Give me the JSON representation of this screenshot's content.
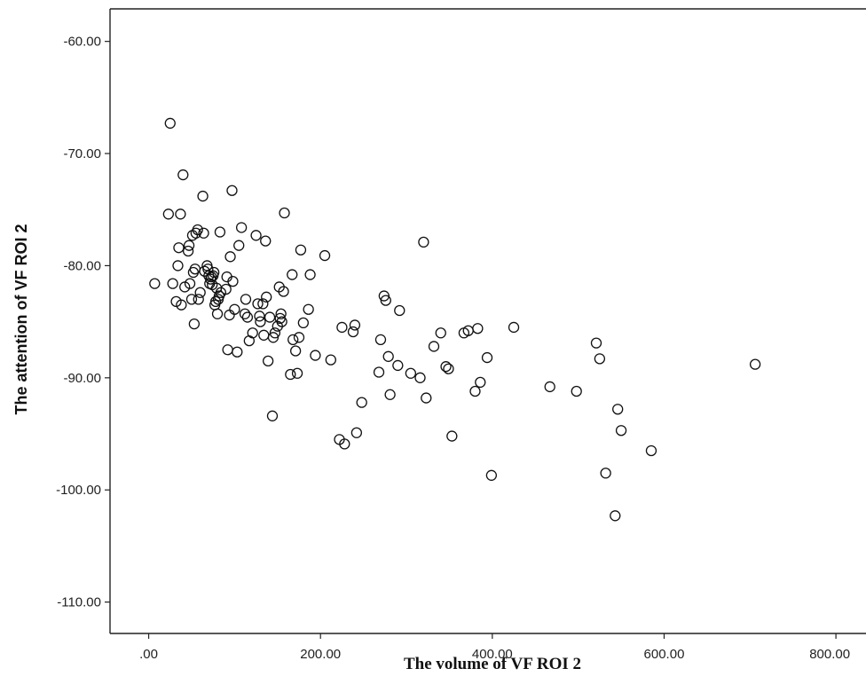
{
  "chart_data": {
    "type": "scatter",
    "xlabel": "The volume of VF ROI 2",
    "ylabel": "The attention of VF ROI 2",
    "xlim": [
      -45,
      835
    ],
    "ylim": [
      -112.8,
      -57.1
    ],
    "x_ticks": [
      0,
      200,
      400,
      600,
      800
    ],
    "x_tick_labels": [
      ".00",
      "200.00",
      "400.00",
      "600.00",
      "800.00"
    ],
    "y_ticks": [
      -60,
      -70,
      -80,
      -90,
      -100,
      -110
    ],
    "y_tick_labels": [
      "-60.00",
      "-70.00",
      "-80.00",
      "-90.00",
      "-100.00",
      "-110.00"
    ],
    "grid": false,
    "marker": "open circle",
    "points": [
      [
        7,
        -81.6
      ],
      [
        23,
        -75.4
      ],
      [
        25,
        -67.3
      ],
      [
        28,
        -81.6
      ],
      [
        32,
        -83.2
      ],
      [
        34,
        -80.0
      ],
      [
        35,
        -78.4
      ],
      [
        37,
        -75.4
      ],
      [
        38,
        -83.5
      ],
      [
        40,
        -71.9
      ],
      [
        42,
        -81.9
      ],
      [
        46,
        -78.7
      ],
      [
        47,
        -78.2
      ],
      [
        48,
        -81.6
      ],
      [
        50,
        -83.0
      ],
      [
        51,
        -77.3
      ],
      [
        52,
        -80.6
      ],
      [
        53,
        -85.2
      ],
      [
        54,
        -80.3
      ],
      [
        55,
        -77.1
      ],
      [
        57,
        -76.8
      ],
      [
        58,
        -83.0
      ],
      [
        60,
        -82.4
      ],
      [
        63,
        -73.8
      ],
      [
        64,
        -77.1
      ],
      [
        65,
        -80.5
      ],
      [
        68,
        -80.0
      ],
      [
        69,
        -80.3
      ],
      [
        70,
        -80.9
      ],
      [
        71,
        -81.6
      ],
      [
        72,
        -81.2
      ],
      [
        73,
        -81.0
      ],
      [
        74,
        -81.7
      ],
      [
        75,
        -80.9
      ],
      [
        76,
        -80.6
      ],
      [
        77,
        -83.5
      ],
      [
        78,
        -83.2
      ],
      [
        79,
        -82.0
      ],
      [
        80,
        -84.3
      ],
      [
        81,
        -83.0
      ],
      [
        82,
        -82.7
      ],
      [
        83,
        -77.0
      ],
      [
        84,
        -82.4
      ],
      [
        90,
        -82.1
      ],
      [
        91,
        -81.0
      ],
      [
        92,
        -87.5
      ],
      [
        94,
        -84.4
      ],
      [
        95,
        -79.2
      ],
      [
        97,
        -73.3
      ],
      [
        98,
        -81.4
      ],
      [
        100,
        -83.9
      ],
      [
        103,
        -87.7
      ],
      [
        105,
        -78.2
      ],
      [
        108,
        -76.6
      ],
      [
        112,
        -84.3
      ],
      [
        113,
        -83.0
      ],
      [
        115,
        -84.6
      ],
      [
        117,
        -86.7
      ],
      [
        121,
        -86.0
      ],
      [
        125,
        -77.3
      ],
      [
        127,
        -83.4
      ],
      [
        129,
        -84.5
      ],
      [
        130,
        -85.0
      ],
      [
        133,
        -83.4
      ],
      [
        134,
        -86.2
      ],
      [
        136,
        -77.8
      ],
      [
        137,
        -82.8
      ],
      [
        139,
        -88.5
      ],
      [
        141,
        -84.6
      ],
      [
        144,
        -93.4
      ],
      [
        145,
        -86.4
      ],
      [
        147,
        -86.0
      ],
      [
        150,
        -85.4
      ],
      [
        152,
        -81.9
      ],
      [
        153,
        -84.7
      ],
      [
        154,
        -84.3
      ],
      [
        155,
        -85.0
      ],
      [
        157,
        -82.3
      ],
      [
        158,
        -75.3
      ],
      [
        165,
        -89.7
      ],
      [
        167,
        -80.8
      ],
      [
        168,
        -86.6
      ],
      [
        171,
        -87.6
      ],
      [
        173,
        -89.6
      ],
      [
        175,
        -86.4
      ],
      [
        177,
        -78.6
      ],
      [
        180,
        -85.1
      ],
      [
        186,
        -83.9
      ],
      [
        188,
        -80.8
      ],
      [
        194,
        -88.0
      ],
      [
        205,
        -79.1
      ],
      [
        212,
        -88.4
      ],
      [
        222,
        -95.5
      ],
      [
        225,
        -85.5
      ],
      [
        228,
        -95.9
      ],
      [
        238,
        -85.9
      ],
      [
        240,
        -85.3
      ],
      [
        242,
        -94.9
      ],
      [
        248,
        -92.2
      ],
      [
        268,
        -89.5
      ],
      [
        270,
        -86.6
      ],
      [
        274,
        -82.7
      ],
      [
        276,
        -83.1
      ],
      [
        279,
        -88.1
      ],
      [
        281,
        -91.5
      ],
      [
        292,
        -84.0
      ],
      [
        290,
        -88.9
      ],
      [
        305,
        -89.6
      ],
      [
        316,
        -90.0
      ],
      [
        320,
        -77.9
      ],
      [
        323,
        -91.8
      ],
      [
        332,
        -87.2
      ],
      [
        340,
        -86.0
      ],
      [
        346,
        -89.0
      ],
      [
        349,
        -89.2
      ],
      [
        353,
        -95.2
      ],
      [
        367,
        -86.0
      ],
      [
        372,
        -85.8
      ],
      [
        380,
        -91.2
      ],
      [
        383,
        -85.6
      ],
      [
        386,
        -90.4
      ],
      [
        394,
        -88.2
      ],
      [
        399,
        -98.7
      ],
      [
        425,
        -85.5
      ],
      [
        467,
        -90.8
      ],
      [
        498,
        -91.2
      ],
      [
        521,
        -86.9
      ],
      [
        525,
        -88.3
      ],
      [
        532,
        -98.5
      ],
      [
        543,
        -102.3
      ],
      [
        546,
        -92.8
      ],
      [
        550,
        -94.7
      ],
      [
        585,
        -96.5
      ],
      [
        706,
        -88.8
      ]
    ]
  }
}
